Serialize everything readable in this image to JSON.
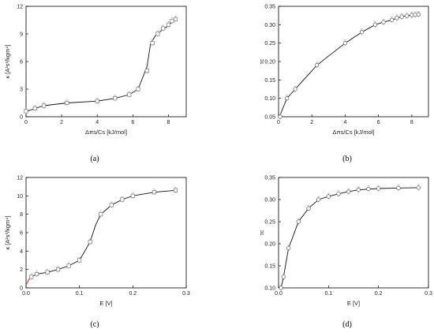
{
  "chart_data": [
    {
      "type": "scatter",
      "panel_label": "(a)",
      "xlabel": "Δπs/Cs [kJ/mol]",
      "ylabel": "κ [A²s³/kgm⁴]",
      "xlim": [
        0,
        9
      ],
      "ylim": [
        0,
        12
      ],
      "xticks": [
        "0",
        "2",
        "4",
        "6",
        "8"
      ],
      "yticks": [
        "0",
        "3",
        "6",
        "9",
        "12"
      ],
      "marker": "square",
      "x": [
        0,
        0.5,
        1.0,
        2.3,
        4.0,
        5.0,
        5.8,
        6.3,
        6.8,
        7.1,
        7.4,
        7.7,
        8.0,
        8.2,
        8.4
      ],
      "y": [
        0.6,
        0.9,
        1.2,
        1.5,
        1.7,
        2.0,
        2.4,
        3.0,
        5.0,
        8.0,
        9.0,
        9.6,
        10.0,
        10.4,
        10.6
      ],
      "curve": [
        [
          0,
          0.55
        ],
        [
          0.5,
          0.9
        ],
        [
          1.0,
          1.2
        ],
        [
          2.3,
          1.5
        ],
        [
          4.0,
          1.7
        ],
        [
          5.0,
          2.0
        ],
        [
          5.8,
          2.4
        ],
        [
          6.3,
          3.0
        ],
        [
          6.6,
          4.5
        ],
        [
          6.8,
          5.5
        ],
        [
          7.0,
          8.0
        ],
        [
          7.3,
          8.9
        ],
        [
          7.7,
          9.5
        ],
        [
          8.0,
          9.9
        ],
        [
          8.2,
          10.3
        ],
        [
          8.4,
          10.6
        ]
      ]
    },
    {
      "type": "scatter",
      "panel_label": "(b)",
      "xlabel": "Δπs/Cs [kJ/mol]",
      "ylabel": "τc",
      "xlim": [
        0,
        9
      ],
      "ylim": [
        0.05,
        0.35
      ],
      "xticks": [
        "0",
        "2",
        "4",
        "6",
        "8"
      ],
      "yticks": [
        "0.05",
        "0.10",
        "0.15",
        "0.20",
        "0.25",
        "0.30",
        "0.35"
      ],
      "marker": "circle",
      "x": [
        0.1,
        0.5,
        1.0,
        2.3,
        4.0,
        5.0,
        5.8,
        6.3,
        6.8,
        7.1,
        7.4,
        7.7,
        8.0,
        8.2,
        8.4
      ],
      "y": [
        0.05,
        0.1,
        0.125,
        0.19,
        0.25,
        0.28,
        0.3,
        0.307,
        0.313,
        0.318,
        0.322,
        0.324,
        0.326,
        0.327,
        0.328
      ],
      "curve": [
        [
          0.05,
          0.05
        ],
        [
          0.5,
          0.1
        ],
        [
          1.0,
          0.125
        ],
        [
          2.3,
          0.19
        ],
        [
          4.0,
          0.25
        ],
        [
          5.0,
          0.28
        ],
        [
          5.8,
          0.3
        ],
        [
          6.3,
          0.307
        ],
        [
          6.8,
          0.313
        ],
        [
          7.4,
          0.322
        ],
        [
          8.0,
          0.326
        ],
        [
          8.4,
          0.328
        ]
      ]
    },
    {
      "type": "scatter",
      "panel_label": "(c)",
      "xlabel": "E [V]",
      "ylabel": "κ [A²s³/kgm⁴]",
      "xlim": [
        0,
        0.3
      ],
      "ylim": [
        0,
        12
      ],
      "xticks": [
        "0.0",
        "0.1",
        "0.2",
        "0.3"
      ],
      "yticks": [
        "0",
        "2",
        "4",
        "6",
        "8",
        "10",
        "12"
      ],
      "marker": "square",
      "x": [
        0.01,
        0.02,
        0.04,
        0.06,
        0.08,
        0.1,
        0.12,
        0.14,
        0.16,
        0.18,
        0.2,
        0.24,
        0.28
      ],
      "y": [
        1.2,
        1.5,
        1.7,
        2.0,
        2.4,
        3.0,
        5.0,
        8.0,
        9.0,
        9.6,
        10.0,
        10.4,
        10.6
      ],
      "curve": [
        [
          0.0,
          0.3
        ],
        [
          0.005,
          0.9
        ],
        [
          0.01,
          1.2
        ],
        [
          0.02,
          1.5
        ],
        [
          0.04,
          1.7
        ],
        [
          0.06,
          2.0
        ],
        [
          0.08,
          2.4
        ],
        [
          0.1,
          3.0
        ],
        [
          0.12,
          5.0
        ],
        [
          0.13,
          6.8
        ],
        [
          0.14,
          8.0
        ],
        [
          0.16,
          9.0
        ],
        [
          0.18,
          9.6
        ],
        [
          0.2,
          10.0
        ],
        [
          0.24,
          10.4
        ],
        [
          0.28,
          10.6
        ]
      ]
    },
    {
      "type": "scatter",
      "panel_label": "(d)",
      "xlabel": "E [V]",
      "ylabel": "τc",
      "xlim": [
        0,
        0.3
      ],
      "ylim": [
        0.1,
        0.35
      ],
      "xticks": [
        "0.0",
        "0.1",
        "0.2",
        "0.3"
      ],
      "yticks": [
        "0.10",
        "0.15",
        "0.20",
        "0.25",
        "0.30",
        "0.35"
      ],
      "marker": "circle",
      "x": [
        0.005,
        0.01,
        0.02,
        0.04,
        0.06,
        0.08,
        0.1,
        0.12,
        0.14,
        0.16,
        0.18,
        0.2,
        0.24,
        0.28
      ],
      "y": [
        0.1,
        0.125,
        0.19,
        0.25,
        0.28,
        0.3,
        0.307,
        0.313,
        0.318,
        0.322,
        0.324,
        0.325,
        0.326,
        0.327
      ],
      "curve": [
        [
          0.005,
          0.1
        ],
        [
          0.01,
          0.125
        ],
        [
          0.02,
          0.19
        ],
        [
          0.04,
          0.25
        ],
        [
          0.06,
          0.28
        ],
        [
          0.08,
          0.3
        ],
        [
          0.1,
          0.307
        ],
        [
          0.12,
          0.313
        ],
        [
          0.14,
          0.318
        ],
        [
          0.16,
          0.322
        ],
        [
          0.2,
          0.325
        ],
        [
          0.24,
          0.326
        ],
        [
          0.28,
          0.327
        ]
      ]
    }
  ]
}
